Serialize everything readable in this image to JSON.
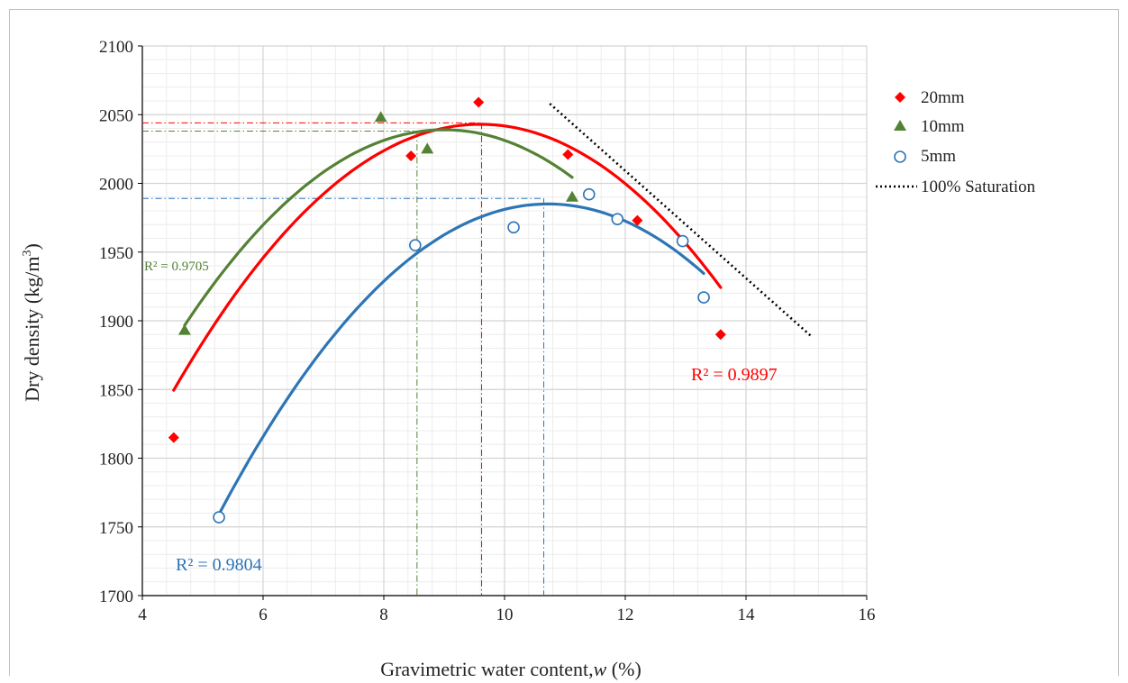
{
  "chart_data": {
    "type": "scatter",
    "xlabel": "Gravimetric water content,",
    "xlabel_var": "w",
    "xlabel_unit": "(%)",
    "ylabel": "Dry density (kg/m",
    "ylabel_sup": "3",
    "ylabel_end": ")",
    "xlim": [
      4,
      16
    ],
    "ylim": [
      1700,
      2100
    ],
    "x_ticks": [
      "4",
      "6",
      "8",
      "10",
      "12",
      "14",
      "16"
    ],
    "y_ticks": [
      "1700",
      "1750",
      "1800",
      "1850",
      "1900",
      "1950",
      "2000",
      "2050",
      "2100"
    ],
    "grid": true,
    "legend_position": "right",
    "series": [
      {
        "name": "20mm",
        "marker": "diamond",
        "color": "#ff0000",
        "points": [
          [
            4.52,
            1815
          ],
          [
            8.45,
            2020
          ],
          [
            9.57,
            2059
          ],
          [
            11.05,
            2021
          ],
          [
            12.2,
            1973
          ],
          [
            13.58,
            1890
          ]
        ],
        "fit": {
          "x_range": [
            4.52,
            13.58
          ],
          "x_peak": 9.6,
          "y_peak": 2043,
          "curvature": -7.5
        },
        "r2": "R² = 0.9897",
        "opt_w": 9.62,
        "max_dd": 2044
      },
      {
        "name": "10mm",
        "marker": "triangle",
        "color": "#548235",
        "points": [
          [
            4.7,
            1893
          ],
          [
            7.95,
            2048
          ],
          [
            8.72,
            2025
          ],
          [
            11.12,
            1990
          ]
        ],
        "fit": {
          "x_range": [
            4.7,
            11.12
          ],
          "x_peak": 9.0,
          "y_peak": 2039,
          "curvature": -7.7
        },
        "r2": "R² = 0.9705",
        "opt_w": 8.55,
        "max_dd": 2038
      },
      {
        "name": "5mm",
        "marker": "circle",
        "color": "#2e75b6",
        "points": [
          [
            5.27,
            1757
          ],
          [
            8.52,
            1955
          ],
          [
            10.15,
            1968
          ],
          [
            11.4,
            1992
          ],
          [
            11.87,
            1974
          ],
          [
            12.95,
            1958
          ],
          [
            13.3,
            1917
          ]
        ],
        "fit": {
          "x_range": [
            5.27,
            13.3
          ],
          "x_peak": 10.72,
          "y_peak": 1985,
          "curvature": -7.6
        },
        "r2": "R² = 0.9804",
        "opt_w": 10.65,
        "max_dd": 1989
      },
      {
        "name": "100% Saturation",
        "marker": "none",
        "color": "#000000",
        "points": [
          [
            10.75,
            2058
          ],
          [
            15.1,
            1888
          ]
        ]
      }
    ]
  }
}
